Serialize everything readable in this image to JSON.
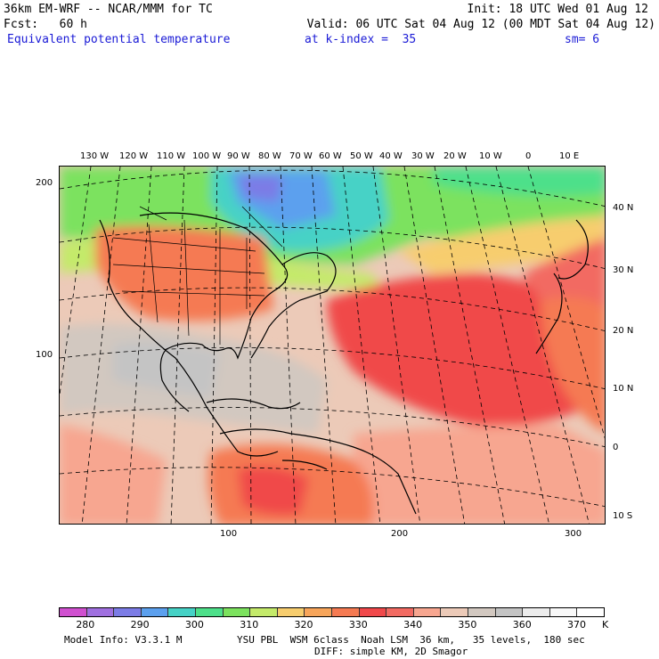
{
  "header": {
    "line1_left": "36km EM-WRF -- NCAR/MMM for TC",
    "line1_right": "Init: 18 UTC Wed 01 Aug 12",
    "line2_left": "Fcst:   60 h",
    "line2_right": "Valid: 06 UTC Sat 04 Aug 12 (00 MDT Sat 04 Aug 12)",
    "field_name": "Equivalent potential temperature",
    "level": "at k-index =  35",
    "smoothing": "sm= 6"
  },
  "map": {
    "lon_labels": [
      "130 W",
      "120 W",
      "110 W",
      "100 W",
      "90 W",
      "80 W",
      "70 W",
      "60 W",
      "50 W",
      "40 W",
      "30 W",
      "20 W",
      "10 W",
      "0",
      "10 E"
    ],
    "lat_labels": [
      "40 N",
      "30 N",
      "20 N",
      "10 N",
      "0",
      "10 S"
    ],
    "grid_y_labels": [
      "200",
      "100"
    ],
    "grid_x_labels": [
      "100",
      "200",
      "300"
    ]
  },
  "colorbar": {
    "colors": [
      "#d050d0",
      "#a070e0",
      "#7c7ce6",
      "#5ca0ee",
      "#46d2c6",
      "#4de08a",
      "#7ce25e",
      "#c4ea6a",
      "#f7cd6e",
      "#f7a55a",
      "#f57a52",
      "#f0484a",
      "#f26a62",
      "#f7a690",
      "#eccab8",
      "#d2c8c0",
      "#c4c4c4",
      "#ececec",
      "#f8f8f8",
      "#ffffff"
    ],
    "tick_labels": [
      "280",
      "290",
      "300",
      "310",
      "320",
      "330",
      "340",
      "350",
      "360",
      "370"
    ],
    "unit": "K"
  },
  "footer": {
    "line1_left": "Model Info: V3.3.1 M",
    "line1_right": "YSU PBL  WSM 6class  Noah LSM  36 km,   35 levels,  180 sec",
    "line2_right": "DIFF: simple KM, 2D Smagor"
  }
}
